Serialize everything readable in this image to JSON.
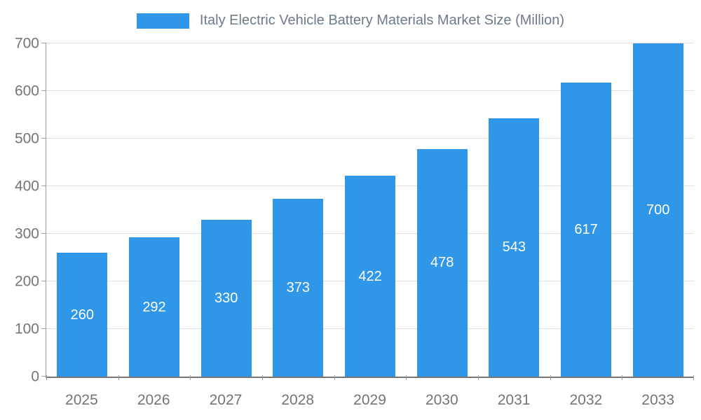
{
  "chart_data": {
    "type": "bar",
    "title": "Italy Electric Vehicle Battery Materials Market Size (Million)",
    "categories": [
      "2025",
      "2026",
      "2027",
      "2028",
      "2029",
      "2030",
      "2031",
      "2032",
      "2033"
    ],
    "values": [
      260,
      292,
      330,
      373,
      422,
      478,
      543,
      617,
      700
    ],
    "value_labels_position": "inside-center",
    "xlabel": "",
    "ylabel": "",
    "ylim": [
      0,
      700
    ],
    "yticks": [
      0,
      100,
      200,
      300,
      400,
      500,
      600,
      700
    ],
    "grid": true,
    "legend_position": "top-center",
    "colors": {
      "bar": "#2F96E8",
      "value_label": "#ffffff",
      "gridline": "#e0e0e0",
      "axis_line": "#9e9e9e",
      "axis_strong": "#757575",
      "tick_label": "#757575",
      "title": "#6E7B8A"
    }
  }
}
